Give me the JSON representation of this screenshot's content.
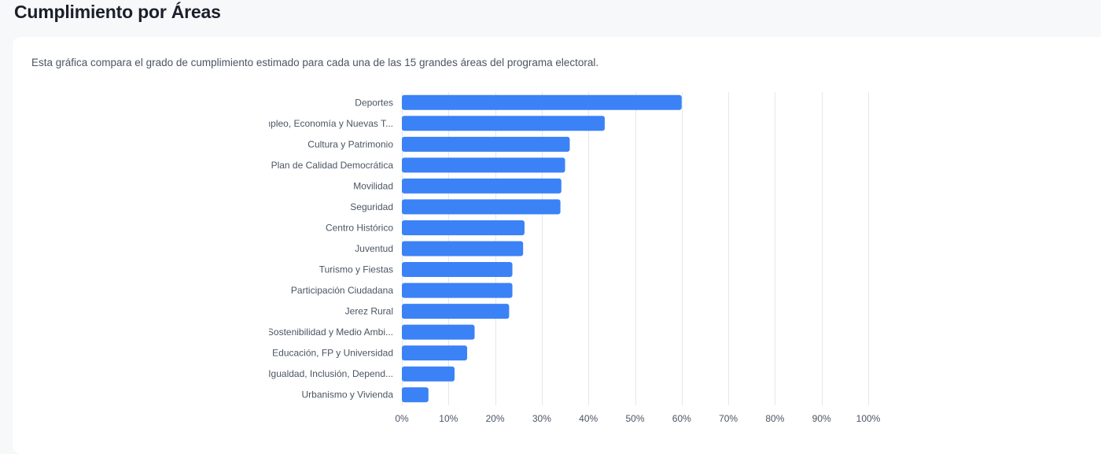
{
  "page": {
    "title": "Cumplimiento por Áreas",
    "description": "Esta gráfica compara el grado de cumplimiento estimado para cada una de las 15 grandes áreas del programa electoral."
  },
  "chart_data": {
    "type": "bar",
    "orientation": "horizontal",
    "categories": [
      "Deportes",
      "Empleo, Economía y Nuevas T...",
      "Cultura y Patrimonio",
      "Plan de Calidad Democrática",
      "Movilidad",
      "Seguridad",
      "Centro Histórico",
      "Juventud",
      "Turismo y Fiestas",
      "Participación Ciudadana",
      "Jerez Rural",
      "Sostenibilidad y Medio Ambi...",
      "Educación, FP y Universidad",
      "Igualdad, Inclusión, Depend...",
      "Urbanismo y Vivienda"
    ],
    "values": [
      60,
      43.5,
      36,
      35,
      34.2,
      34,
      26.3,
      26,
      23.7,
      23.7,
      23,
      15.6,
      14,
      11.3,
      5.7
    ],
    "xlim": [
      0,
      100
    ],
    "x_ticks": [
      0,
      10,
      20,
      30,
      40,
      50,
      60,
      70,
      80,
      90,
      100
    ],
    "x_tick_labels": [
      "0%",
      "10%",
      "20%",
      "30%",
      "40%",
      "50%",
      "60%",
      "70%",
      "80%",
      "90%",
      "100%"
    ],
    "grid": true,
    "bar_color": "#3b82f6",
    "title": "",
    "xlabel": "",
    "ylabel": ""
  }
}
